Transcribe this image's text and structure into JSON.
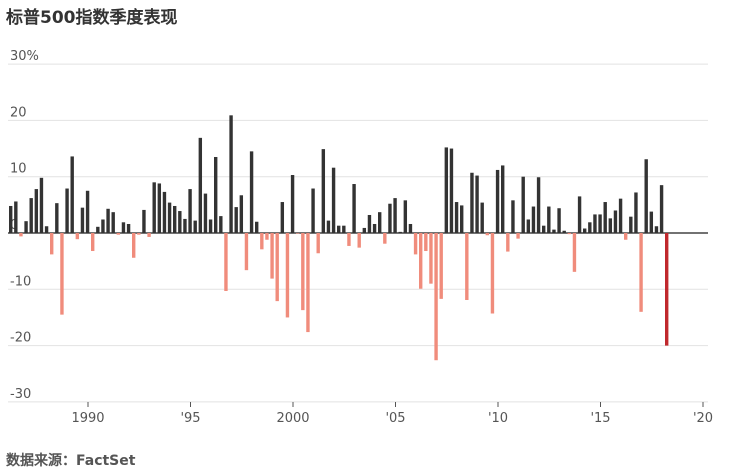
{
  "title": "标普500指数季度表现",
  "source": "数据来源：FactSet",
  "chart_data": {
    "type": "bar",
    "title": "标普500指数季度表现",
    "ylim": [
      -30,
      30
    ],
    "yticks": [
      "30%",
      "20",
      "10",
      "0",
      "-10",
      "-20",
      "-30"
    ],
    "ytick_values": [
      30,
      20,
      10,
      0,
      -10,
      -20,
      -30
    ],
    "xticks": [
      "1990",
      "'95",
      "2000",
      "'05",
      "'10",
      "'15",
      "'20"
    ],
    "xtick_years": [
      1990,
      1995,
      2000,
      2005,
      2010,
      2015,
      2020
    ],
    "start": "1988 Q1",
    "grid": true,
    "colors": {
      "positive": "#333333",
      "negative": "#f08c7c",
      "latest": "#c0282d"
    },
    "values": [
      4.8,
      5.6,
      -0.6,
      2.1,
      6.2,
      7.8,
      9.8,
      1.2,
      -3.8,
      5.3,
      -14.5,
      7.9,
      13.6,
      -1.1,
      4.5,
      7.5,
      -3.2,
      1.1,
      2.4,
      4.3,
      3.7,
      -0.3,
      1.9,
      1.6,
      -4.4,
      -0.3,
      4.1,
      -0.7,
      9.0,
      8.8,
      7.3,
      5.4,
      4.8,
      3.9,
      2.5,
      7.8,
      2.2,
      16.9,
      7.0,
      2.4,
      13.5,
      3.0,
      -10.3,
      20.9,
      4.6,
      6.7,
      -6.6,
      14.5,
      2.0,
      -2.9,
      -1.2,
      -8.1,
      -12.1,
      5.5,
      -15.0,
      10.3,
      -0.1,
      -13.7,
      -17.6,
      7.9,
      -3.6,
      14.9,
      2.2,
      11.6,
      1.3,
      1.3,
      -2.3,
      8.7,
      -2.6,
      0.9,
      3.2,
      1.6,
      3.7,
      -1.9,
      5.2,
      6.2,
      0.2,
      5.8,
      1.6,
      -3.8,
      -9.9,
      -3.2,
      -9.0,
      -22.6,
      -11.7,
      15.2,
      15.0,
      5.5,
      4.9,
      -11.9,
      10.7,
      10.2,
      5.4,
      -0.4,
      -14.3,
      11.2,
      12.0,
      -3.3,
      5.8,
      -1.0,
      10.0,
      2.4,
      4.7,
      9.9,
      1.3,
      4.7,
      0.6,
      4.4,
      0.4,
      -0.2,
      -6.9,
      6.5,
      0.8,
      1.9,
      3.3,
      3.3,
      5.5,
      2.6,
      4.0,
      6.1,
      -1.2,
      2.9,
      7.2,
      -14.0,
      13.1,
      3.8,
      1.2,
      8.5,
      -20.0
    ]
  }
}
